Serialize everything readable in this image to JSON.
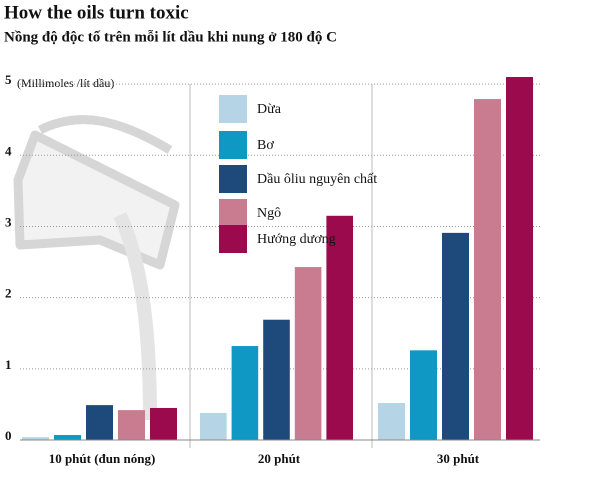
{
  "chart_data": {
    "type": "bar",
    "title": "How the oils turn toxic",
    "subtitle": "Nồng độ độc tố trên mỗi lít dầu khi nung ở 180 độ C",
    "y_label": "(Millimoles /lít dầu)",
    "categories": [
      "10 phút (đun nóng)",
      "20 phút",
      "30 phút"
    ],
    "series": [
      {
        "name": "Dừa",
        "color": "#b5d5e7",
        "values": [
          0.04,
          0.38,
          0.52
        ]
      },
      {
        "name": "Bơ",
        "color": "#0f98c4",
        "values": [
          0.07,
          1.32,
          1.26
        ]
      },
      {
        "name": "Dầu ôliu nguyên chất",
        "color": "#1e4a7b",
        "values": [
          0.49,
          1.69,
          2.91
        ]
      },
      {
        "name": "Ngô",
        "color": "#c97c8f",
        "values": [
          0.42,
          2.43,
          4.79
        ]
      },
      {
        "name": "Hướng dương",
        "color": "#9b0a4c",
        "values": [
          0.45,
          3.15,
          5.1
        ]
      }
    ],
    "ylim": [
      0,
      5.1
    ],
    "yticks": [
      0,
      1,
      2,
      3,
      4,
      5
    ],
    "grid": true
  }
}
